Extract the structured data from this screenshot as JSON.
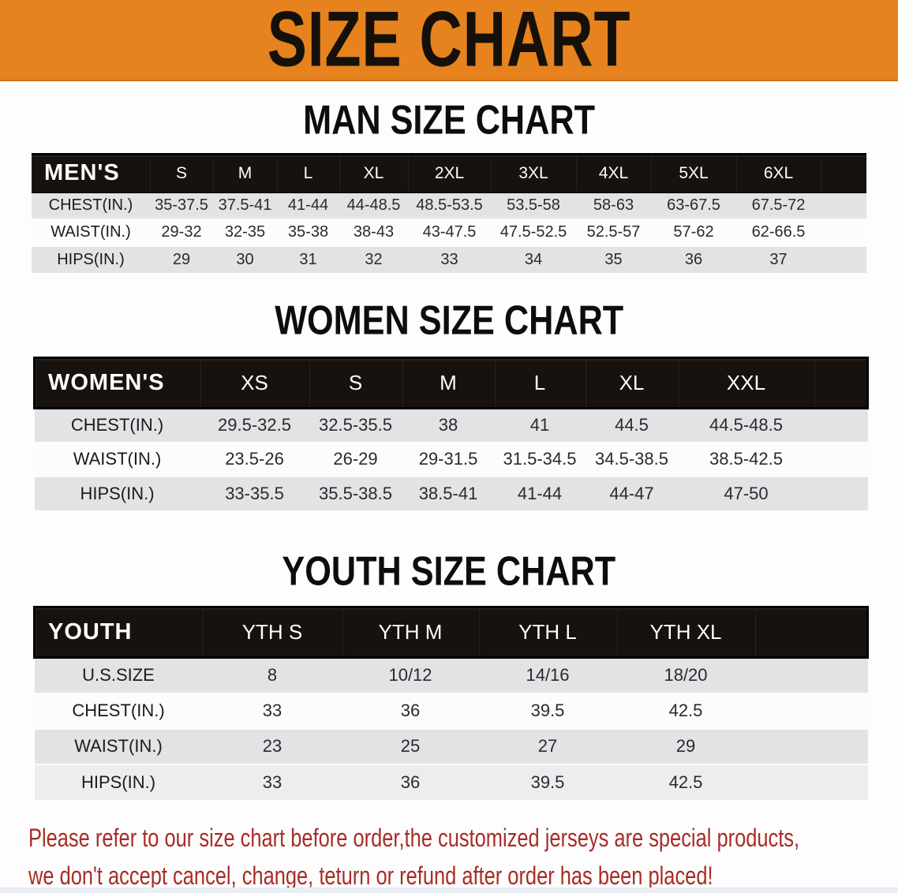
{
  "banner": {
    "title": "SIZE CHART"
  },
  "sections": [
    {
      "heading": "MAN SIZE CHART",
      "table": {
        "header": [
          "MEN'S",
          "S",
          "M",
          "L",
          "XL",
          "2XL",
          "3XL",
          "4XL",
          "5XL",
          "6XL"
        ],
        "rows": [
          [
            "CHEST(IN.)",
            "35-37.5",
            "37.5-41",
            "41-44",
            "44-48.5",
            "48.5-53.5",
            "53.5-58",
            "58-63",
            "63-67.5",
            "67.5-72"
          ],
          [
            "WAIST(IN.)",
            "29-32",
            "32-35",
            "35-38",
            "38-43",
            "43-47.5",
            "47.5-52.5",
            "52.5-57",
            "57-62",
            "62-66.5"
          ],
          [
            "HIPS(IN.)",
            "29",
            "30",
            "31",
            "32",
            "33",
            "34",
            "35",
            "36",
            "37"
          ]
        ]
      }
    },
    {
      "heading": "WOMEN SIZE CHART",
      "table": {
        "header": [
          "WOMEN'S",
          "XS",
          "S",
          "M",
          "L",
          "XL",
          "XXL"
        ],
        "rows": [
          [
            "CHEST(IN.)",
            "29.5-32.5",
            "32.5-35.5",
            "38",
            "41",
            "44.5",
            "44.5-48.5"
          ],
          [
            "WAIST(IN.)",
            "23.5-26",
            "26-29",
            "29-31.5",
            "31.5-34.5",
            "34.5-38.5",
            "38.5-42.5"
          ],
          [
            "HIPS(IN.)",
            "33-35.5",
            "35.5-38.5",
            "38.5-41",
            "41-44",
            "44-47",
            "47-50"
          ]
        ]
      }
    },
    {
      "heading": "YOUTH SIZE CHART",
      "table": {
        "header": [
          "YOUTH",
          "YTH S",
          "YTH M",
          "YTH L",
          "YTH XL"
        ],
        "rows": [
          [
            "U.S.SIZE",
            "8",
            "10/12",
            "14/16",
            "18/20"
          ],
          [
            "CHEST(IN.)",
            "33",
            "36",
            "39.5",
            "42.5"
          ],
          [
            "WAIST(IN.)",
            "23",
            "25",
            "27",
            "29"
          ],
          [
            "HIPS(IN.)",
            "33",
            "36",
            "39.5",
            "42.5"
          ]
        ]
      }
    }
  ],
  "disclaimer": {
    "line1": "Please refer to our size chart before order,the customized jerseys are special products,",
    "line2": "we don't accept cancel, change, teturn or refund after order has been placed!"
  },
  "colors": {
    "banner_orange": "#E7831E",
    "table_header_black": "#17120E",
    "row_gray": "#E3E3E5",
    "row_white": "#FCFCFD",
    "disclaimer_red": "#A92C25"
  }
}
